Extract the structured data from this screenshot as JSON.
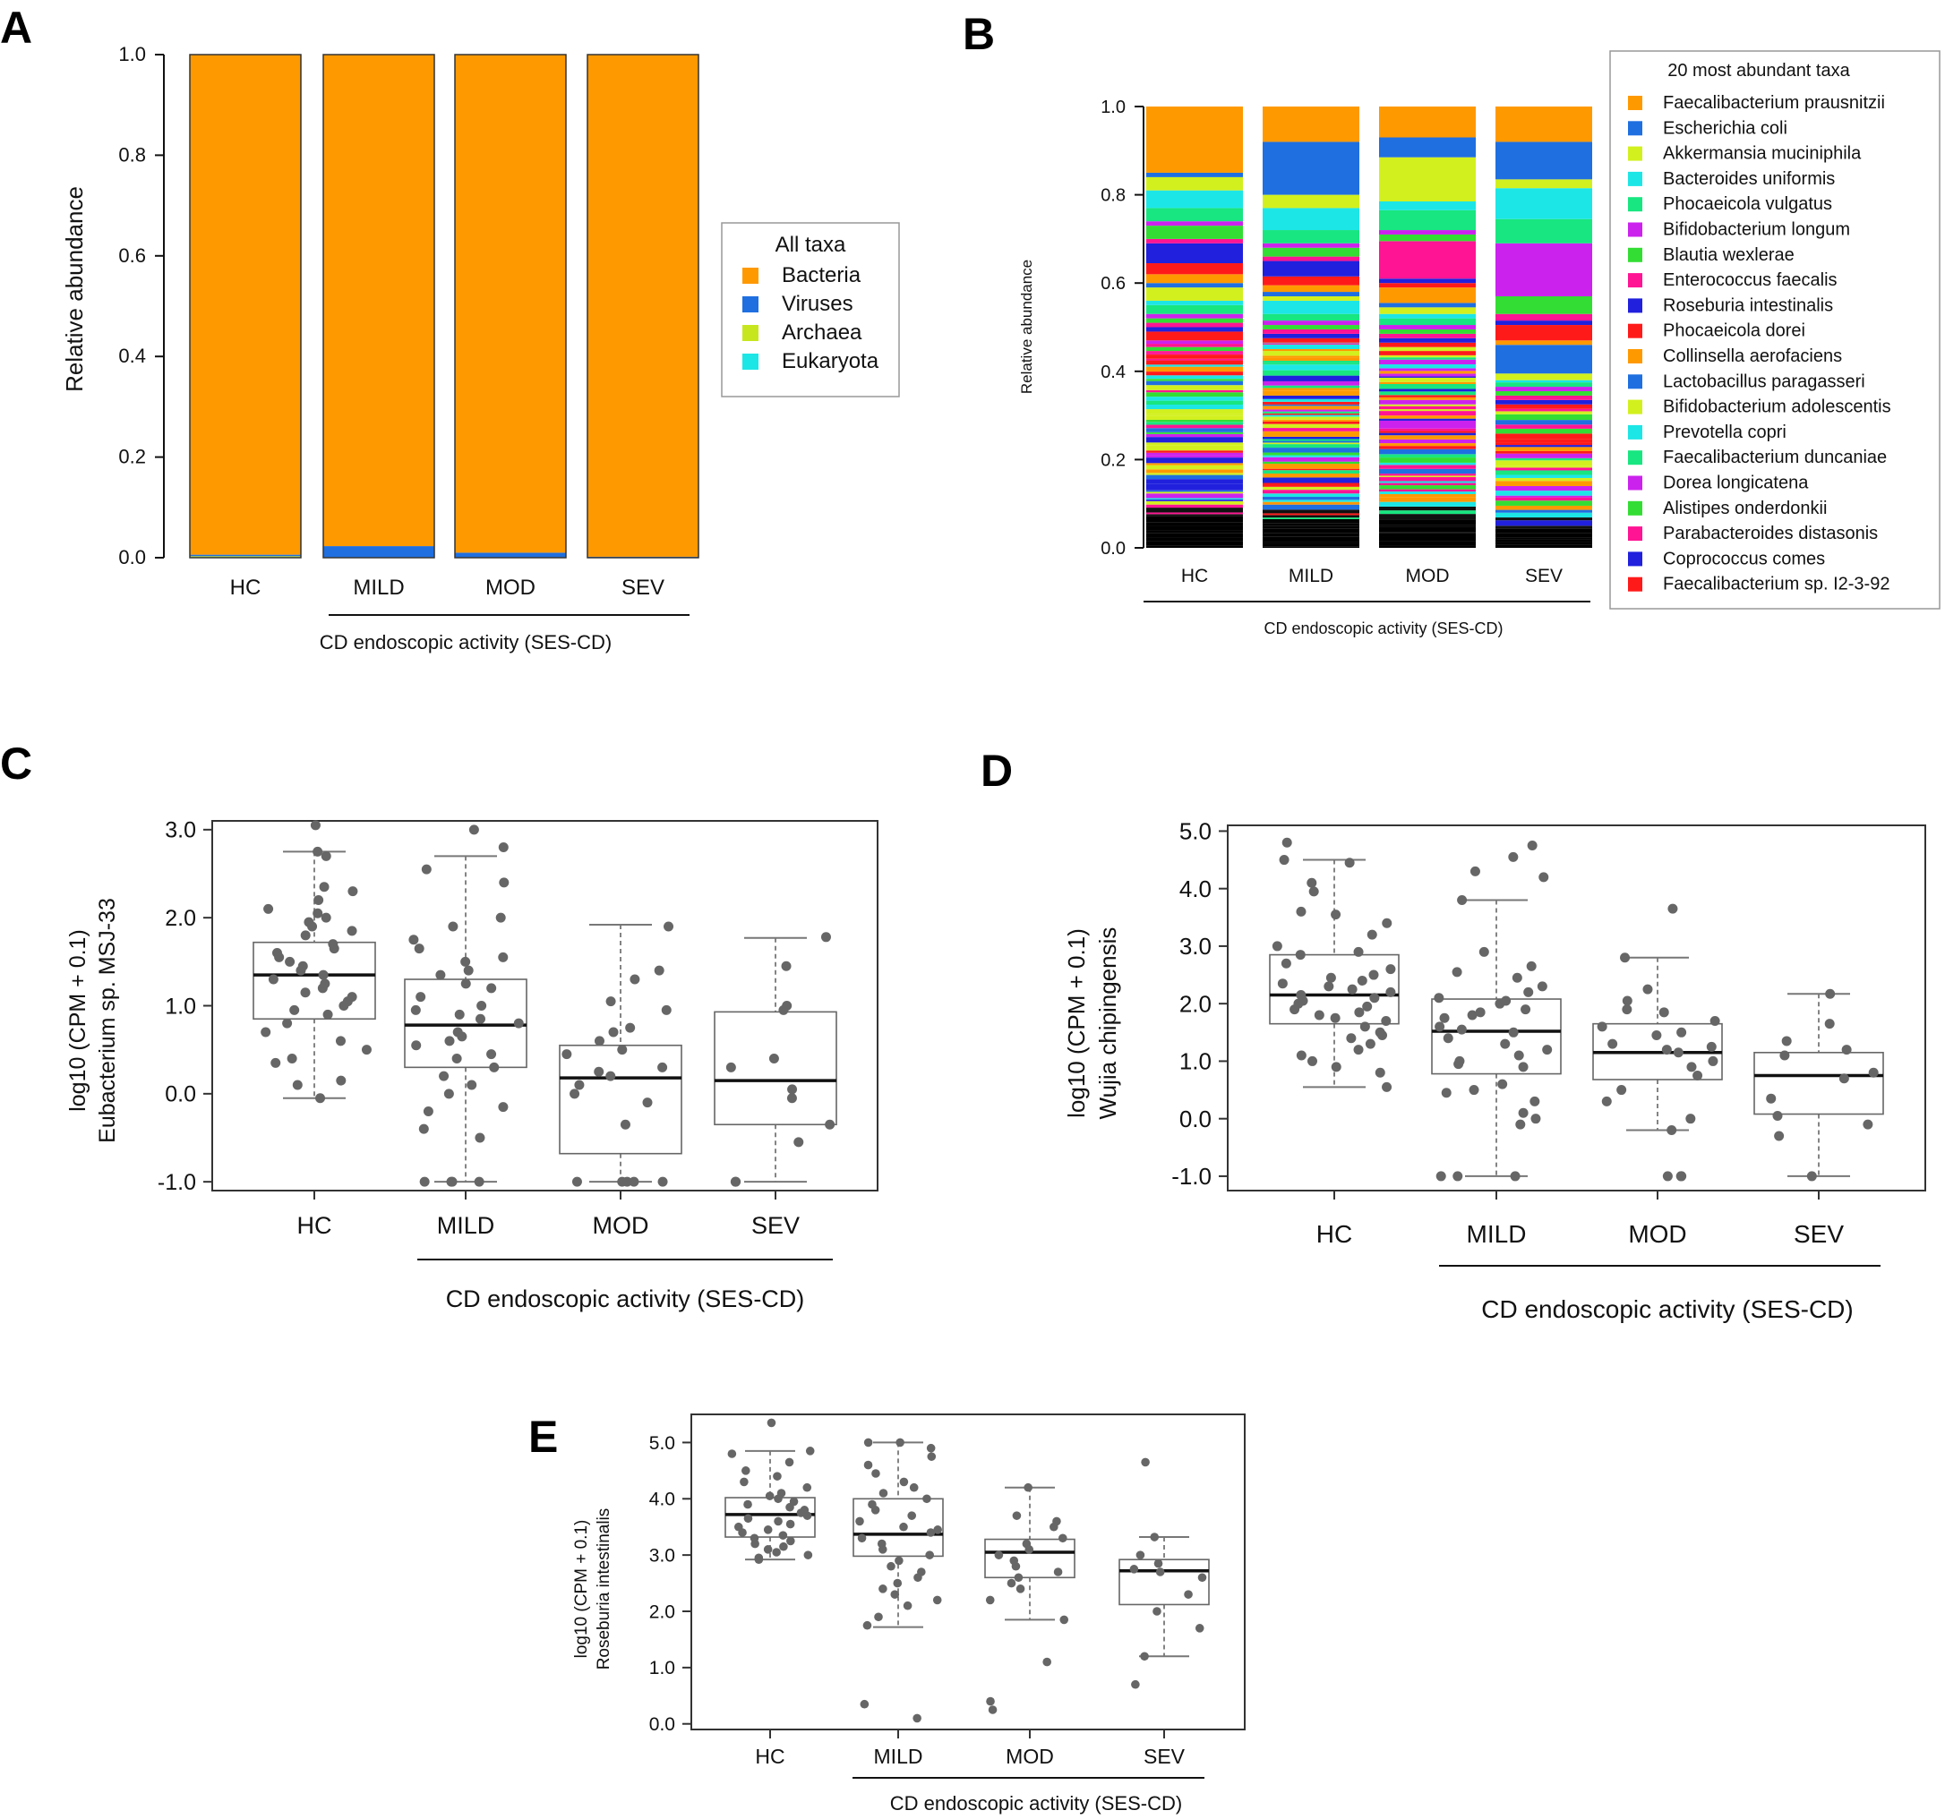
{
  "figure": {
    "panel_labels": [
      "A",
      "B",
      "C",
      "D",
      "E"
    ]
  },
  "chart_data": [
    {
      "panel": "A",
      "type": "bar",
      "stacked": true,
      "title": "",
      "xlabel": "CD endoscopic activity (SES-CD)",
      "ylabel": "Relative abundance",
      "ylim": [
        0,
        1
      ],
      "yticks": [
        "0.0",
        "0.2",
        "0.4",
        "0.6",
        "0.8",
        "1.0"
      ],
      "categories": [
        "HC",
        "MILD",
        "MOD",
        "SEV"
      ],
      "legend_title": "All taxa",
      "legend_position": "right",
      "series": [
        {
          "name": "Bacteria",
          "color": "#ff9900",
          "values": [
            0.994,
            0.977,
            0.99,
            0.998
          ]
        },
        {
          "name": "Viruses",
          "color": "#1f6fe0",
          "values": [
            0.003,
            0.022,
            0.009,
            0.001
          ]
        },
        {
          "name": "Archaea",
          "color": "#c8e61e",
          "values": [
            0.003,
            0.001,
            0.001,
            0.001
          ]
        },
        {
          "name": "Eukaryota",
          "color": "#1de6e6",
          "values": [
            0.0,
            0.0,
            0.0,
            0.0
          ]
        }
      ]
    },
    {
      "panel": "B",
      "type": "bar",
      "stacked": true,
      "title": "",
      "xlabel": "CD endoscopic activity (SES-CD)",
      "ylabel": "Relative abundance",
      "ylim": [
        0,
        1
      ],
      "yticks": [
        "0.0",
        "0.2",
        "0.4",
        "0.6",
        "0.8",
        "1.0"
      ],
      "categories": [
        "HC",
        "MILD",
        "MOD",
        "SEV"
      ],
      "legend_title": "20 most abundant taxa",
      "legend_position": "right",
      "series": [
        {
          "name": "Faecalibacterium prausnitzii",
          "color": "#ff9900",
          "values": [
            0.15,
            0.08,
            0.07,
            0.08
          ]
        },
        {
          "name": "Escherichia coli",
          "color": "#1f6fe0",
          "values": [
            0.01,
            0.12,
            0.045,
            0.085
          ]
        },
        {
          "name": "Akkermansia muciniphila",
          "color": "#d2f01e",
          "values": [
            0.03,
            0.03,
            0.1,
            0.02
          ]
        },
        {
          "name": "Bacteroides uniformis",
          "color": "#1de6e6",
          "values": [
            0.04,
            0.05,
            0.02,
            0.07
          ]
        },
        {
          "name": "Phocaeicola vulgatus",
          "color": "#18e680",
          "values": [
            0.03,
            0.03,
            0.045,
            0.055
          ]
        },
        {
          "name": "Bifidobacterium longum",
          "color": "#cc22ee",
          "values": [
            0.01,
            0.01,
            0.01,
            0.12
          ]
        },
        {
          "name": "Blautia wexlerae",
          "color": "#33dd33",
          "values": [
            0.03,
            0.02,
            0.015,
            0.04
          ]
        },
        {
          "name": "Enterococcus faecalis",
          "color": "#ff1493",
          "values": [
            0.01,
            0.01,
            0.085,
            0.015
          ]
        },
        {
          "name": "Roseburia intestinalis",
          "color": "#2020dd",
          "values": [
            0.045,
            0.035,
            0.01,
            0.01
          ]
        },
        {
          "name": "Phocaeicola dorei",
          "color": "#ff1a1a",
          "values": [
            0.025,
            0.02,
            0.01,
            0.035
          ]
        },
        {
          "name": "Collinsella aerofaciens",
          "color": "#ff9900",
          "values": [
            0.02,
            0.015,
            0.035,
            0.01
          ]
        },
        {
          "name": "Lactobacillus paragasseri",
          "color": "#1f6fe0",
          "values": [
            0.01,
            0.01,
            0.01,
            0.065
          ]
        },
        {
          "name": "Bifidobacterium adolescentis",
          "color": "#d2f01e",
          "values": [
            0.03,
            0.01,
            0.015,
            0.015
          ]
        },
        {
          "name": "Prevotella copri",
          "color": "#1de6e6",
          "values": [
            0.01,
            0.03,
            0.01,
            0.005
          ]
        },
        {
          "name": "Faecalibacterium duncaniae",
          "color": "#18e680",
          "values": [
            0.02,
            0.015,
            0.015,
            0.01
          ]
        },
        {
          "name": "Dorea longicatena",
          "color": "#cc22ee",
          "values": [
            0.01,
            0.01,
            0.01,
            0.01
          ]
        },
        {
          "name": "Alistipes onderdonkii",
          "color": "#33dd33",
          "values": [
            0.01,
            0.01,
            0.01,
            0.01
          ]
        },
        {
          "name": "Parabacteroides distasonis",
          "color": "#ff1493",
          "values": [
            0.01,
            0.01,
            0.01,
            0.01
          ]
        },
        {
          "name": "Coprococcus comes",
          "color": "#2020dd",
          "values": [
            0.01,
            0.01,
            0.01,
            0.01
          ]
        },
        {
          "name": "Faecalibacterium sp. I2-3-92",
          "color": "#ff1a1a",
          "values": [
            0.02,
            0.01,
            0.01,
            0.01
          ]
        }
      ],
      "other_taxa_note": "remaining low-abundance taxa stacked below"
    },
    {
      "panel": "C",
      "type": "box",
      "title": "",
      "xlabel": "CD endoscopic activity (SES-CD)",
      "ylabel": "log10 (CPM + 0.1)",
      "ylabel2": "Eubacterium sp. MSJ-33",
      "ylim": [
        -1.1,
        3.1
      ],
      "yticks": [
        "-1.0",
        "0.0",
        "1.0",
        "2.0",
        "3.0"
      ],
      "categories": [
        "HC",
        "MILD",
        "MOD",
        "SEV"
      ],
      "boxes": [
        {
          "q1": 0.85,
          "median": 1.35,
          "q3": 1.72,
          "whisker_low": -0.05,
          "whisker_high": 2.75,
          "points": [
            3.05,
            2.75,
            2.7,
            2.35,
            2.3,
            2.2,
            2.1,
            2.05,
            2.0,
            1.95,
            1.9,
            1.85,
            1.8,
            1.7,
            1.65,
            1.6,
            1.55,
            1.5,
            1.45,
            1.4,
            1.35,
            1.3,
            1.25,
            1.2,
            1.15,
            1.1,
            1.05,
            1.0,
            0.95,
            0.9,
            0.8,
            0.7,
            0.6,
            0.5,
            0.4,
            0.35,
            0.15,
            0.1,
            -0.05
          ]
        },
        {
          "q1": 0.3,
          "median": 0.78,
          "q3": 1.3,
          "whisker_low": -1.0,
          "whisker_high": 2.7,
          "points": [
            3.0,
            2.8,
            2.55,
            2.4,
            2.0,
            1.9,
            1.75,
            1.65,
            1.55,
            1.5,
            1.4,
            1.35,
            1.25,
            1.2,
            1.1,
            1.0,
            0.95,
            0.9,
            0.85,
            0.8,
            0.7,
            0.65,
            0.6,
            0.55,
            0.45,
            0.4,
            0.3,
            0.2,
            0.1,
            0.0,
            -0.15,
            -0.2,
            -0.4,
            -0.5,
            -1.0,
            -1.0,
            -1.0,
            -1.0
          ]
        },
        {
          "q1": -0.68,
          "median": 0.18,
          "q3": 0.55,
          "whisker_low": -1.0,
          "whisker_high": 1.92,
          "points": [
            1.9,
            1.4,
            1.3,
            1.05,
            0.95,
            0.75,
            0.7,
            0.6,
            0.5,
            0.45,
            0.3,
            0.25,
            0.2,
            0.1,
            0.0,
            -0.1,
            -0.35,
            -1.0,
            -1.0,
            -1.0,
            -1.0,
            -1.0
          ]
        },
        {
          "q1": -0.35,
          "median": 0.15,
          "q3": 0.93,
          "whisker_low": -1.0,
          "whisker_high": 1.77,
          "points": [
            1.78,
            1.45,
            1.0,
            0.95,
            0.4,
            0.3,
            0.05,
            -0.05,
            -0.35,
            -0.55,
            -1.0,
            -1.0
          ]
        }
      ]
    },
    {
      "panel": "D",
      "type": "box",
      "title": "",
      "xlabel": "CD endoscopic activity (SES-CD)",
      "ylabel": "log10 (CPM + 0.1)",
      "ylabel2": "Wujia chipingensis",
      "ylim": [
        -1.2,
        5.1
      ],
      "yticks": [
        "-1.0",
        "0.0",
        "1.0",
        "2.0",
        "3.0",
        "4.0",
        "5.0"
      ],
      "categories": [
        "HC",
        "MILD",
        "MOD",
        "SEV"
      ],
      "boxes": [
        {
          "q1": 1.65,
          "median": 2.15,
          "q3": 2.85,
          "whisker_low": 0.55,
          "whisker_high": 4.5,
          "points": [
            4.8,
            4.5,
            4.45,
            4.1,
            3.95,
            3.6,
            3.55,
            3.4,
            3.2,
            3.0,
            2.9,
            2.85,
            2.7,
            2.6,
            2.5,
            2.45,
            2.4,
            2.35,
            2.3,
            2.25,
            2.2,
            2.15,
            2.1,
            2.05,
            2.0,
            1.95,
            1.9,
            1.85,
            1.8,
            1.75,
            1.7,
            1.6,
            1.5,
            1.45,
            1.4,
            1.3,
            1.2,
            1.1,
            1.0,
            0.9,
            0.8,
            0.55
          ]
        },
        {
          "q1": 0.78,
          "median": 1.52,
          "q3": 2.08,
          "whisker_low": -1.0,
          "whisker_high": 3.8,
          "points": [
            4.75,
            4.55,
            4.3,
            4.2,
            3.8,
            2.9,
            2.65,
            2.55,
            2.45,
            2.3,
            2.2,
            2.1,
            2.05,
            2.0,
            1.9,
            1.85,
            1.8,
            1.75,
            1.6,
            1.55,
            1.5,
            1.4,
            1.3,
            1.2,
            1.1,
            1.0,
            0.95,
            0.9,
            0.6,
            0.5,
            0.45,
            0.3,
            0.1,
            0.0,
            -0.1,
            -1.0,
            -1.0,
            -1.0
          ]
        },
        {
          "q1": 0.68,
          "median": 1.15,
          "q3": 1.65,
          "whisker_low": -0.2,
          "whisker_high": 2.8,
          "points": [
            3.65,
            2.8,
            2.25,
            2.05,
            1.9,
            1.85,
            1.7,
            1.6,
            1.5,
            1.45,
            1.3,
            1.25,
            1.2,
            1.15,
            1.0,
            0.9,
            0.75,
            0.5,
            0.3,
            0.0,
            -0.2,
            -1.0,
            -1.0,
            -1.0
          ]
        },
        {
          "q1": 0.08,
          "median": 0.75,
          "q3": 1.15,
          "whisker_low": -1.0,
          "whisker_high": 2.17,
          "points": [
            2.17,
            1.65,
            1.35,
            1.2,
            1.1,
            0.8,
            0.7,
            0.35,
            0.05,
            -0.1,
            -0.3,
            -1.0
          ]
        }
      ]
    },
    {
      "panel": "E",
      "type": "box",
      "title": "",
      "xlabel": "CD endoscopic activity (SES-CD)",
      "ylabel": "log10 (CPM + 0.1)",
      "ylabel2": "Roseburia intestinalis",
      "ylim": [
        -0.1,
        5.5
      ],
      "yticks": [
        "0.0",
        "1.0",
        "2.0",
        "3.0",
        "4.0",
        "5.0"
      ],
      "categories": [
        "HC",
        "MILD",
        "MOD",
        "SEV"
      ],
      "boxes": [
        {
          "q1": 3.32,
          "median": 3.72,
          "q3": 4.02,
          "whisker_low": 2.92,
          "whisker_high": 4.85,
          "points": [
            5.35,
            4.85,
            4.8,
            4.65,
            4.5,
            4.4,
            4.3,
            4.2,
            4.1,
            4.05,
            4.0,
            3.95,
            3.9,
            3.85,
            3.8,
            3.75,
            3.7,
            3.65,
            3.6,
            3.55,
            3.5,
            3.45,
            3.4,
            3.35,
            3.3,
            3.25,
            3.2,
            3.15,
            3.1,
            3.05,
            3.0,
            2.95,
            2.92
          ]
        },
        {
          "q1": 2.98,
          "median": 3.37,
          "q3": 4.0,
          "whisker_low": 1.72,
          "whisker_high": 5.0,
          "points": [
            5.0,
            5.0,
            4.9,
            4.75,
            4.6,
            4.45,
            4.3,
            4.2,
            4.1,
            4.0,
            3.9,
            3.8,
            3.7,
            3.6,
            3.5,
            3.45,
            3.4,
            3.3,
            3.2,
            3.1,
            3.0,
            2.9,
            2.8,
            2.7,
            2.6,
            2.5,
            2.4,
            2.3,
            2.2,
            2.1,
            1.9,
            1.75,
            0.35,
            0.1
          ]
        },
        {
          "q1": 2.6,
          "median": 3.05,
          "q3": 3.28,
          "whisker_low": 1.85,
          "whisker_high": 4.2,
          "points": [
            4.2,
            3.7,
            3.6,
            3.5,
            3.3,
            3.2,
            3.1,
            3.0,
            2.9,
            2.8,
            2.7,
            2.6,
            2.5,
            2.4,
            2.2,
            1.85,
            1.1,
            0.4,
            0.25
          ]
        },
        {
          "q1": 2.12,
          "median": 2.72,
          "q3": 2.92,
          "whisker_low": 1.2,
          "whisker_high": 3.32,
          "points": [
            4.65,
            3.32,
            3.0,
            2.85,
            2.75,
            2.7,
            2.6,
            2.3,
            2.0,
            1.7,
            1.2,
            0.7
          ]
        }
      ]
    }
  ]
}
